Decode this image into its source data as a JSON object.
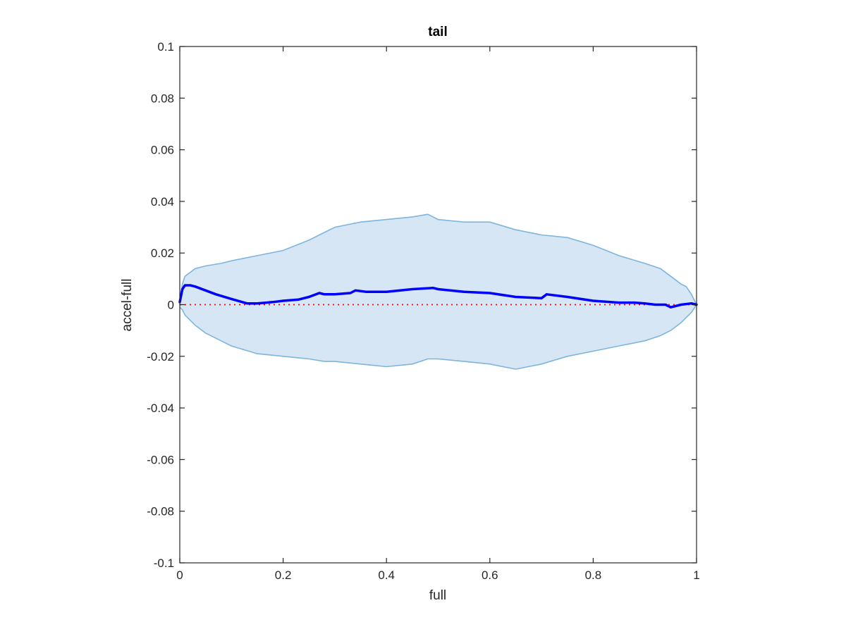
{
  "chart_data": {
    "type": "line",
    "title": "tail",
    "xlabel": "full",
    "ylabel": "accel-full",
    "xlim": [
      0,
      1
    ],
    "ylim": [
      -0.1,
      0.1
    ],
    "xticks": [
      "0",
      "0.2",
      "0.4",
      "0.6",
      "0.8",
      "1"
    ],
    "xtick_values": [
      0,
      0.2,
      0.4,
      0.6,
      0.8,
      1
    ],
    "yticks": [
      "-0.1",
      "-0.08",
      "-0.06",
      "-0.04",
      "-0.02",
      "0",
      "0.02",
      "0.04",
      "0.06",
      "0.08",
      "0.1"
    ],
    "ytick_values": [
      -0.1,
      -0.08,
      -0.06,
      -0.04,
      -0.02,
      0,
      0.02,
      0.04,
      0.06,
      0.08,
      0.1
    ],
    "grid": false,
    "reference_line": {
      "y": 0,
      "style": "dotted",
      "color": "#ff0000"
    },
    "band": {
      "x": [
        0,
        0.005,
        0.01,
        0.03,
        0.05,
        0.08,
        0.1,
        0.15,
        0.2,
        0.25,
        0.28,
        0.3,
        0.35,
        0.4,
        0.45,
        0.48,
        0.5,
        0.55,
        0.6,
        0.65,
        0.7,
        0.75,
        0.8,
        0.85,
        0.9,
        0.93,
        0.95,
        0.97,
        0.98,
        0.99,
        1.0
      ],
      "upper": [
        0.002,
        0.008,
        0.011,
        0.014,
        0.015,
        0.016,
        0.017,
        0.019,
        0.021,
        0.025,
        0.028,
        0.03,
        0.032,
        0.033,
        0.034,
        0.035,
        0.033,
        0.032,
        0.032,
        0.029,
        0.027,
        0.026,
        0.023,
        0.019,
        0.016,
        0.014,
        0.011,
        0.008,
        0.007,
        0.004,
        0.0
      ],
      "lower": [
        -0.001,
        -0.002,
        -0.004,
        -0.008,
        -0.011,
        -0.014,
        -0.016,
        -0.019,
        -0.02,
        -0.021,
        -0.022,
        -0.022,
        -0.023,
        -0.024,
        -0.023,
        -0.021,
        -0.021,
        -0.022,
        -0.023,
        -0.025,
        -0.023,
        -0.02,
        -0.018,
        -0.016,
        -0.014,
        -0.012,
        -0.01,
        -0.007,
        -0.005,
        -0.003,
        0.0
      ],
      "color": "#d6e6f4",
      "edge_color": "#7db5dc"
    },
    "series": [
      {
        "color": "#0000ff",
        "x": [
          0,
          0.005,
          0.01,
          0.02,
          0.03,
          0.05,
          0.07,
          0.1,
          0.13,
          0.15,
          0.18,
          0.2,
          0.23,
          0.25,
          0.27,
          0.28,
          0.3,
          0.33,
          0.34,
          0.36,
          0.4,
          0.45,
          0.49,
          0.5,
          0.55,
          0.6,
          0.65,
          0.7,
          0.71,
          0.75,
          0.8,
          0.85,
          0.88,
          0.9,
          0.92,
          0.94,
          0.95,
          0.97,
          0.99,
          1.0
        ],
        "y": [
          0.001,
          0.006,
          0.0075,
          0.0075,
          0.007,
          0.0055,
          0.004,
          0.0022,
          0.0005,
          0.0005,
          0.001,
          0.0015,
          0.002,
          0.003,
          0.0045,
          0.004,
          0.004,
          0.0045,
          0.0055,
          0.005,
          0.005,
          0.006,
          0.0065,
          0.006,
          0.005,
          0.0045,
          0.003,
          0.0025,
          0.004,
          0.003,
          0.0015,
          0.0008,
          0.0008,
          0.0005,
          0.0,
          0.0,
          -0.001,
          0.0,
          0.0005,
          0.0
        ]
      }
    ]
  }
}
